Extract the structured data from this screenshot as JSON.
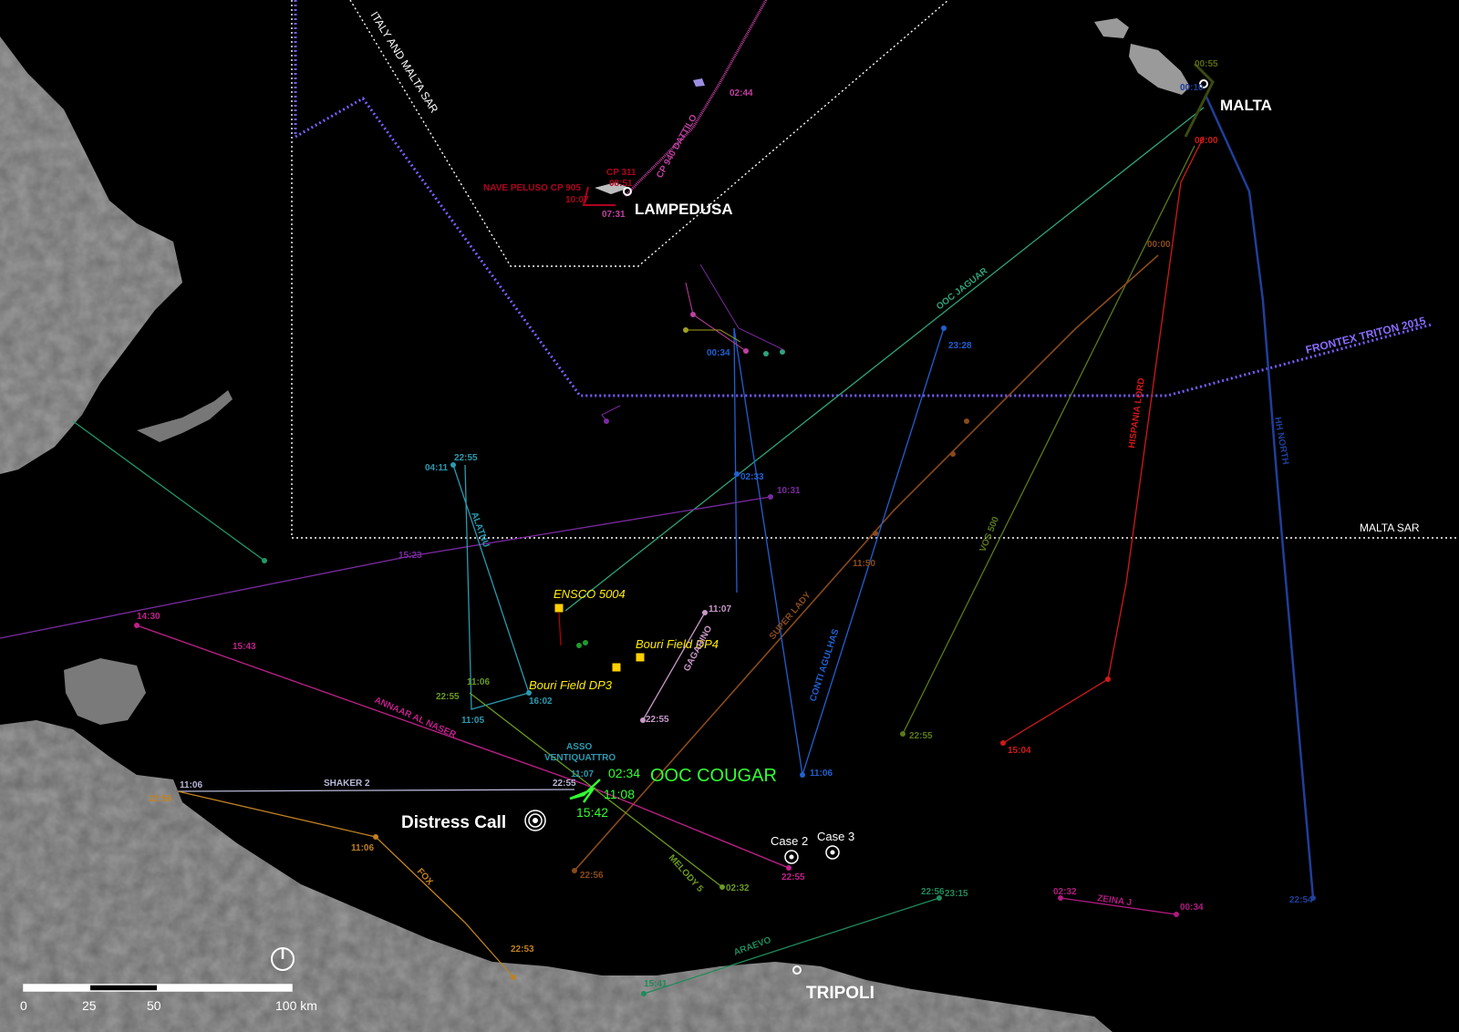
{
  "places": {
    "malta": "MALTA",
    "lampedusa": "LAMPEDUSA",
    "tripoli": "TRIPOLI"
  },
  "zones": {
    "italy_malta_sar": "ITALY AND MALTA SAR",
    "malta_sar": "MALTA   SAR",
    "frontex": "FRONTEX TRITON 2015"
  },
  "events": {
    "distress_call": "Distress Call",
    "case2": "Case 2",
    "case3": "Case 3"
  },
  "rigs": {
    "ensco": "ENSCO 5004",
    "dp4": "Bouri Field DP4",
    "dp3": "Bouri Field  DP3"
  },
  "cougar": {
    "name": "OOC COUGAR",
    "t1": "02:34",
    "t2": "11:08",
    "t3": "15:42"
  },
  "vessels": {
    "jaguar": "OOC JAGUAR",
    "hh_north": "HH NORTH",
    "hispania_lord": "HISPANIA LORD",
    "vos_500": "VOS 500",
    "super_lady": "SUPER LADY",
    "conti_agulhas": "CONTI AGULHAS",
    "gagarino": "GAGARINO",
    "alatnu": "ALATNU",
    "annaar": "ANNAAR AL NASER",
    "asso": "ASSO",
    "asso2": "VENTIQUATTRO",
    "shaker": "SHAKER 2",
    "fox": "FOX",
    "melody": "MELODY 5",
    "araevo": "ARAEVO",
    "zeina": "ZEINA J",
    "cp940": "CP 940 DATTILO",
    "nave": "NAVE PELUSO CP 905",
    "cp311": "CP 311"
  },
  "times": {
    "t0055": "00:55",
    "t0010": "00:10",
    "t0000r": "00:00",
    "t0000o": "00:00",
    "t0244": "02:44",
    "t0851": "08:51",
    "t1007": "10:07",
    "t0731": "07:31",
    "t0034a": "00:34",
    "t2328": "23:28",
    "t0233": "02:33",
    "t1031": "10:31",
    "t0411": "04:11",
    "t2255a": "22:55",
    "t1523": "15:23",
    "t1430": "14:30",
    "t1543": "15:43",
    "t1150": "11:50",
    "t1107a": "11:07",
    "t2255b": "22:55",
    "t1106a": "11:06",
    "t2255c": "22:55",
    "t1105": "11:05",
    "t1602": "16:02",
    "t1106b": "11:06",
    "t2255d": "22:55",
    "t2255e": "22:55",
    "t1107b": "11:07",
    "t1504": "15:04",
    "t2256a": "22:56",
    "t1106c": "11:06",
    "t2256b": "22:56",
    "t2255f": "22:55",
    "t0232a": "02:32",
    "t2256c": "22:56",
    "t2315": "23:15",
    "t0232b": "02:32",
    "t0034b": "00:34",
    "t2254": "22:54",
    "t2253": "22:53",
    "t1541": "15:41",
    "t2256d": "22:56"
  },
  "scale": {
    "s0": "0",
    "s25": "25",
    "s50": "50",
    "s100": "100 km"
  },
  "colors": {
    "malta_sar_line": "#ffffff",
    "frontex_line": "#7b5cff",
    "cougar": "#33ff33",
    "rig": "#ffee00",
    "land": "#8a8a8a"
  }
}
